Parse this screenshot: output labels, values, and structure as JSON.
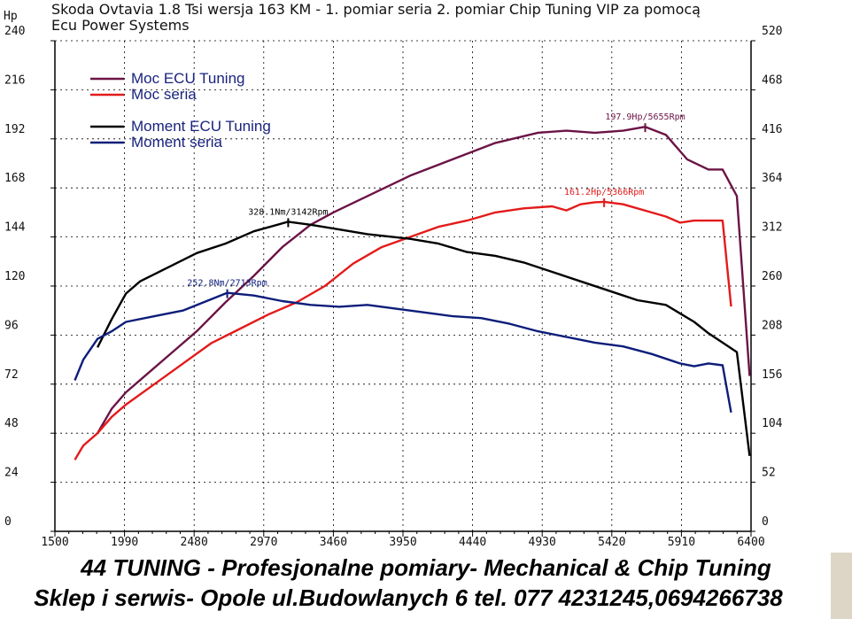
{
  "title": "Skoda Ovtavia 1.8 Tsi wersja 163 KM - 1. pomiar seria 2. pomiar Chip Tuning VIP za pomocą Ecu Power Systems",
  "footer": {
    "line1": "44 TUNING - Profesjonalne pomiary- Mechanical & Chip Tuning",
    "line2": "Sklep i serwis- Opole ul.Budowlanych 6  tel. 077 4231245,0694266738"
  },
  "colors": {
    "moc_ecu": "#6b1446",
    "moc_seria": "#e31b1b",
    "moment_ecu": "#000000",
    "moment_seria": "#0d1d7a",
    "grid": "#000000"
  },
  "chart_data": {
    "type": "line",
    "title": "",
    "ylabel_left": "Hp",
    "xlim": [
      1500,
      6400
    ],
    "ylim_left": [
      0,
      240
    ],
    "ylim_right": [
      0,
      520
    ],
    "x_ticks": [
      "1500",
      "1990",
      "2480",
      "2970",
      "3460",
      "3950",
      "4440",
      "4930",
      "5420",
      "5910",
      "6400"
    ],
    "y_ticks_left": [
      "0",
      "24",
      "48",
      "72",
      "96",
      "120",
      "144",
      "168",
      "192",
      "216",
      "240"
    ],
    "y_ticks_right": [
      "0",
      "52",
      "104",
      "156",
      "208",
      "260",
      "312",
      "364",
      "416",
      "468",
      "520"
    ],
    "legend": [
      "Moc ECU Tuning",
      "Moc seria",
      "Moment ECU Tuning",
      "Moment seria"
    ],
    "legend_position": "top-left",
    "series": [
      {
        "name": "Moc ECU Tuning",
        "axis": "left",
        "x": [
          1800,
          1900,
          2000,
          2100,
          2300,
          2500,
          2700,
          2900,
          3100,
          3300,
          3460,
          3700,
          4000,
          4300,
          4600,
          4900,
          5100,
          5300,
          5500,
          5655,
          5800,
          5950,
          6100,
          6200,
          6300,
          6390
        ],
        "y": [
          48,
          60,
          68,
          74,
          86,
          98,
          112,
          125,
          139,
          150,
          156,
          164,
          174,
          182,
          190,
          195,
          196,
          195,
          196,
          197.9,
          194,
          182,
          177,
          177,
          164,
          76
        ]
      },
      {
        "name": "Moc seria",
        "axis": "left",
        "x": [
          1640,
          1700,
          1800,
          1900,
          2000,
          2200,
          2400,
          2600,
          2800,
          3000,
          3200,
          3400,
          3600,
          3800,
          4000,
          4200,
          4400,
          4600,
          4800,
          5000,
          5100,
          5200,
          5300,
          5366,
          5500,
          5700,
          5800,
          5900,
          6000,
          6100,
          6200,
          6260
        ],
        "y": [
          35,
          42,
          48,
          56,
          62,
          72,
          82,
          92,
          99,
          106,
          112,
          120,
          131,
          139,
          144,
          149,
          152,
          156,
          158,
          159,
          157,
          160,
          161,
          161.2,
          160,
          156,
          154,
          151,
          152,
          152,
          152,
          110
        ]
      },
      {
        "name": "Moment ECU Tuning",
        "axis": "right",
        "x": [
          1800,
          1900,
          2000,
          2100,
          2300,
          2500,
          2700,
          2900,
          3142,
          3300,
          3500,
          3700,
          4000,
          4200,
          4400,
          4600,
          4800,
          5000,
          5200,
          5400,
          5600,
          5800,
          6000,
          6100,
          6200,
          6300,
          6390
        ],
        "y": [
          195,
          225,
          252,
          265,
          280,
          295,
          305,
          318,
          328.1,
          325,
          320,
          315,
          310,
          305,
          296,
          292,
          285,
          275,
          265,
          255,
          245,
          240,
          222,
          210,
          200,
          190,
          80
        ]
      },
      {
        "name": "Moment seria",
        "axis": "right",
        "x": [
          1640,
          1700,
          1800,
          1900,
          2000,
          2200,
          2400,
          2713,
          2900,
          3100,
          3300,
          3500,
          3700,
          3900,
          4100,
          4300,
          4500,
          4700,
          4900,
          5100,
          5300,
          5500,
          5700,
          5900,
          6000,
          6100,
          6200,
          6260
        ],
        "y": [
          160,
          182,
          204,
          212,
          222,
          228,
          234,
          252.8,
          250,
          244,
          240,
          238,
          240,
          236,
          232,
          228,
          226,
          220,
          212,
          206,
          200,
          196,
          188,
          178,
          175,
          178,
          176,
          126
        ]
      }
    ],
    "annotations": [
      {
        "text": "197.9Hp/5655Rpm",
        "series": "Moc ECU Tuning",
        "x": 5655,
        "y": 197.9
      },
      {
        "text": "161.2Hp/5366Rpm",
        "series": "Moc seria",
        "x": 5366,
        "y": 161.2
      },
      {
        "text": "328.1Nm/3142Rpm",
        "series": "Moment ECU Tuning",
        "x": 3142,
        "y": 328.1
      },
      {
        "text": "252.8Nm/2713Rpm",
        "series": "Moment seria",
        "x": 2713,
        "y": 252.8
      }
    ]
  }
}
